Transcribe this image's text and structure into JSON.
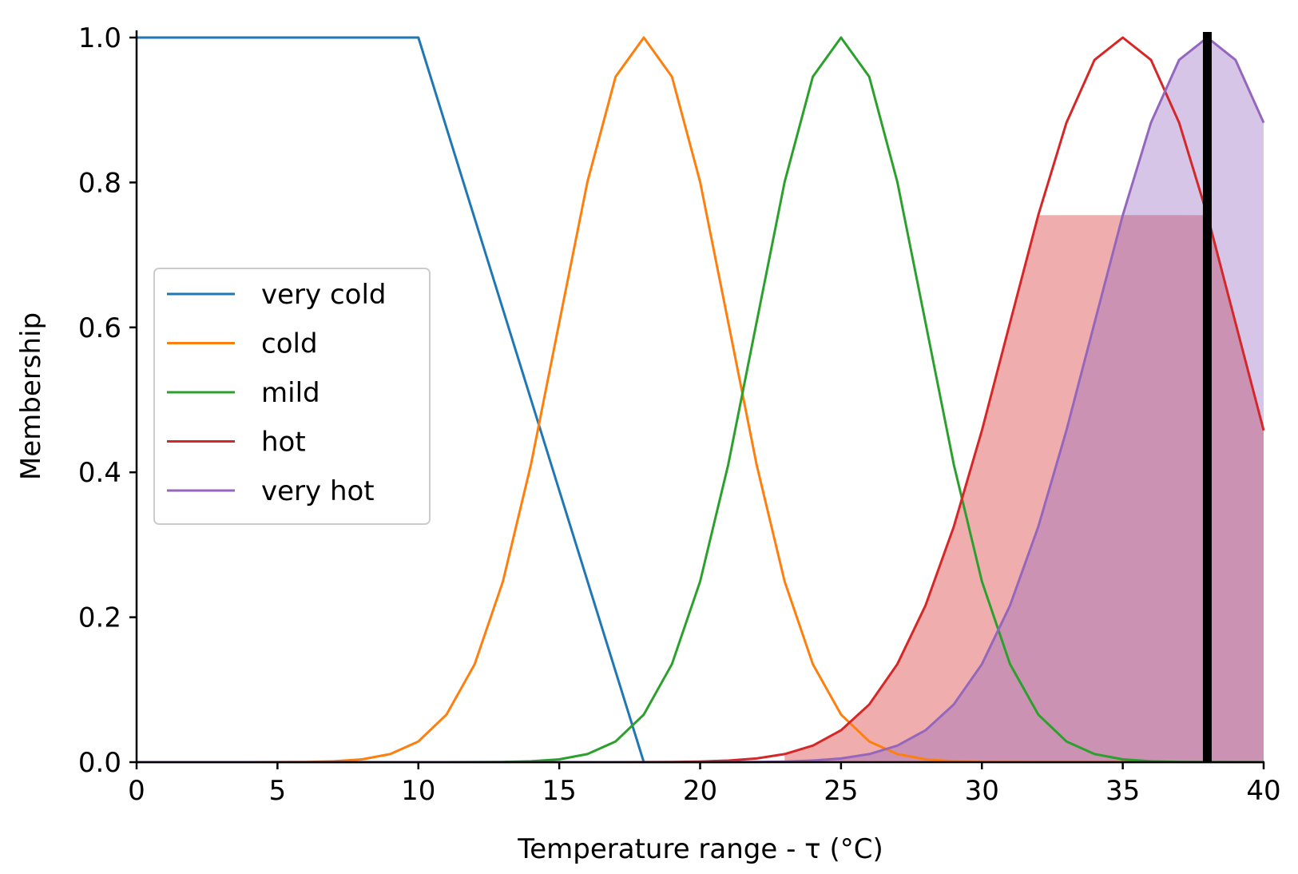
{
  "chart_data": {
    "type": "line",
    "title": "",
    "xlabel": "Temperature range - τ (°C)",
    "ylabel": "Membership",
    "xlim": [
      0,
      40
    ],
    "ylim": [
      0,
      1
    ],
    "x_ticks": [
      "0",
      "5",
      "10",
      "15",
      "20",
      "25",
      "30",
      "35",
      "40"
    ],
    "y_ticks": [
      "0.0",
      "0.2",
      "0.4",
      "0.6",
      "0.8",
      "1.0"
    ],
    "grid": false,
    "legend_position": "center-left",
    "series": [
      {
        "name": "very cold",
        "color": "#1f77b4",
        "shape": "trapezoid",
        "params": [
          0,
          0,
          10,
          18
        ]
      },
      {
        "name": "cold",
        "color": "#ff7f0e",
        "shape": "gaussian",
        "mean": 18,
        "sigma": 3
      },
      {
        "name": "mild",
        "color": "#2ca02c",
        "shape": "gaussian",
        "mean": 25,
        "sigma": 3
      },
      {
        "name": "hot",
        "color": "#d62728",
        "shape": "gaussian",
        "mean": 35,
        "sigma": 4
      },
      {
        "name": "very hot",
        "color": "#9467bd",
        "shape": "gaussian",
        "mean": 38,
        "sigma": 4
      }
    ],
    "fills": [
      {
        "series": "hot",
        "clip_level": 0.755,
        "color": "#d62728",
        "opacity": 0.38,
        "x_range": [
          23,
          40
        ]
      },
      {
        "series": "very hot",
        "clip_level": 1.0,
        "color": "#9467bd",
        "opacity": 0.38,
        "x_range": [
          24,
          40
        ]
      }
    ],
    "vertical_marker": {
      "x": 38,
      "color": "#000000"
    }
  }
}
